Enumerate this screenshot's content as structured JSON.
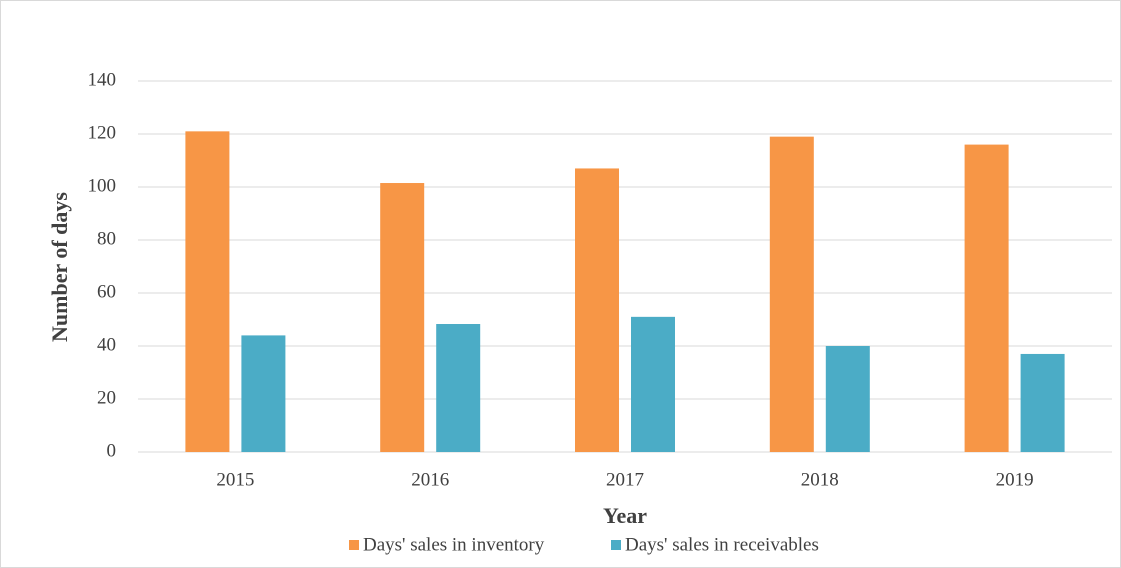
{
  "chart_data": {
    "type": "bar",
    "categories": [
      "2015",
      "2016",
      "2017",
      "2018",
      "2019"
    ],
    "series": [
      {
        "name": "Days' sales in inventory",
        "color": "#f79646",
        "values": [
          121,
          101.5,
          107,
          119,
          116
        ]
      },
      {
        "name": "Days' sales in receivables",
        "color": "#4bacc6",
        "values": [
          44,
          48.3,
          51,
          40,
          37
        ]
      }
    ],
    "x_label": "Year",
    "y_label": "Number of days",
    "ylim": [
      0,
      140
    ],
    "yticks": [
      0,
      20,
      40,
      60,
      80,
      100,
      120,
      140
    ],
    "grid": true,
    "legend": "bottom"
  }
}
